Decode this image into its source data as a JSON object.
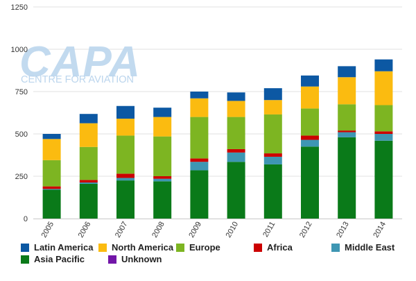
{
  "chart_data": {
    "type": "bar",
    "stacked": true,
    "categories": [
      "2005",
      "2006",
      "2007",
      "2008",
      "2009",
      "2010",
      "2011",
      "2012",
      "2013",
      "2014"
    ],
    "ylim": [
      0,
      1250
    ],
    "yticks": [
      0,
      250,
      500,
      750,
      1000,
      1250
    ],
    "grid": true,
    "legend_position": "bottom",
    "series": [
      {
        "name": "Asia Pacific",
        "color": "#0a7a19",
        "values": [
          170,
          205,
          225,
          220,
          285,
          335,
          320,
          425,
          480,
          460
        ]
      },
      {
        "name": "Middle East",
        "color": "#3e96b3",
        "values": [
          5,
          8,
          15,
          15,
          50,
          55,
          45,
          40,
          30,
          40
        ]
      },
      {
        "name": "Africa",
        "color": "#cc0000",
        "values": [
          15,
          15,
          25,
          15,
          20,
          20,
          20,
          25,
          10,
          15
        ]
      },
      {
        "name": "Europe",
        "color": "#7db522",
        "values": [
          155,
          195,
          225,
          235,
          245,
          190,
          230,
          160,
          155,
          155
        ]
      },
      {
        "name": "North America",
        "color": "#fbbb10",
        "values": [
          125,
          140,
          100,
          115,
          110,
          95,
          85,
          130,
          160,
          200
        ]
      },
      {
        "name": "Latin America",
        "color": "#0c58a3",
        "values": [
          30,
          55,
          75,
          55,
          40,
          50,
          70,
          65,
          65,
          70
        ]
      },
      {
        "name": "Unknown",
        "color": "#7216a8",
        "values": [
          0,
          0,
          0,
          0,
          0,
          0,
          0,
          0,
          0,
          0
        ]
      }
    ]
  },
  "legend_rows": [
    [
      "Latin America",
      "North America",
      "Europe",
      "Africa",
      "Middle East"
    ],
    [
      "Asia Pacific",
      "Unknown"
    ]
  ],
  "watermark": {
    "logo": "CAPA",
    "tagline": "CENTRE FOR AVIATION",
    "color": "#b7d3ec"
  }
}
